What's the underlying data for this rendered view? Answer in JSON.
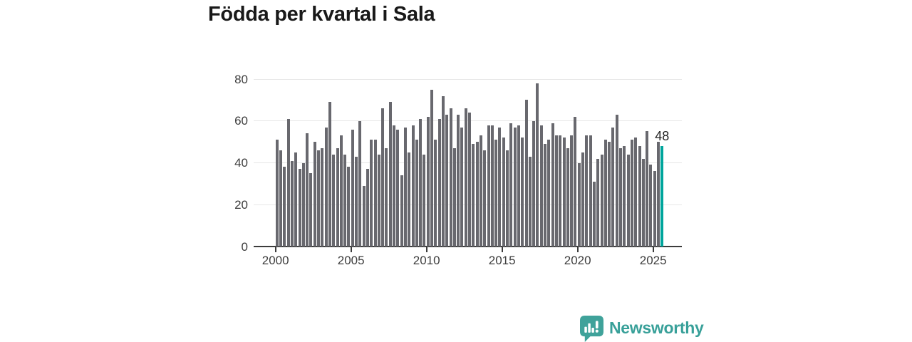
{
  "title": "Födda per kvartal i Sala",
  "annotation": {
    "latest_value_label": "48"
  },
  "branding": {
    "logo_text": "Newsworthy",
    "logo_icon": "newsworthy-bar-chart-bubble-icon"
  },
  "colors": {
    "bar": "#68686e",
    "highlight_bar": "#00a59c",
    "brand_teal": "#38a099",
    "gridline": "#e7e7e7",
    "axis": "#3c3c3c",
    "title_text": "#191919",
    "axis_text": "#3d3d3d",
    "background": "#ffffff"
  },
  "chart_data": {
    "type": "bar",
    "title": "Födda per kvartal i Sala",
    "frequency": "quarterly",
    "x_start_label": "2000",
    "x_axis": {
      "tick_labels": [
        "2000",
        "2005",
        "2010",
        "2015",
        "2020",
        "2025"
      ]
    },
    "y_axis": {
      "tick_labels": [
        "0",
        "20",
        "40",
        "60",
        "80"
      ],
      "range": [
        0,
        80
      ],
      "grid": true
    },
    "values": [
      51,
      46,
      38,
      61,
      41,
      45,
      37,
      40,
      54,
      35,
      50,
      46,
      47,
      57,
      69,
      44,
      47,
      53,
      44,
      38,
      56,
      43,
      60,
      29,
      37,
      51,
      51,
      44,
      66,
      47,
      69,
      58,
      56,
      34,
      57,
      45,
      58,
      51,
      61,
      44,
      62,
      75,
      51,
      61,
      72,
      63,
      66,
      47,
      63,
      57,
      66,
      64,
      49,
      50,
      53,
      46,
      58,
      58,
      51,
      57,
      52,
      46,
      59,
      57,
      58,
      52,
      70,
      43,
      60,
      78,
      58,
      49,
      51,
      59,
      53,
      53,
      52,
      47,
      53,
      62,
      40,
      45,
      53,
      53,
      31,
      42,
      44,
      51,
      50,
      57,
      63,
      47,
      48,
      44,
      51,
      52,
      48,
      42,
      55,
      39,
      36,
      50,
      48
    ],
    "highlight_last": true,
    "highlight_value": 48,
    "legend": "none"
  }
}
